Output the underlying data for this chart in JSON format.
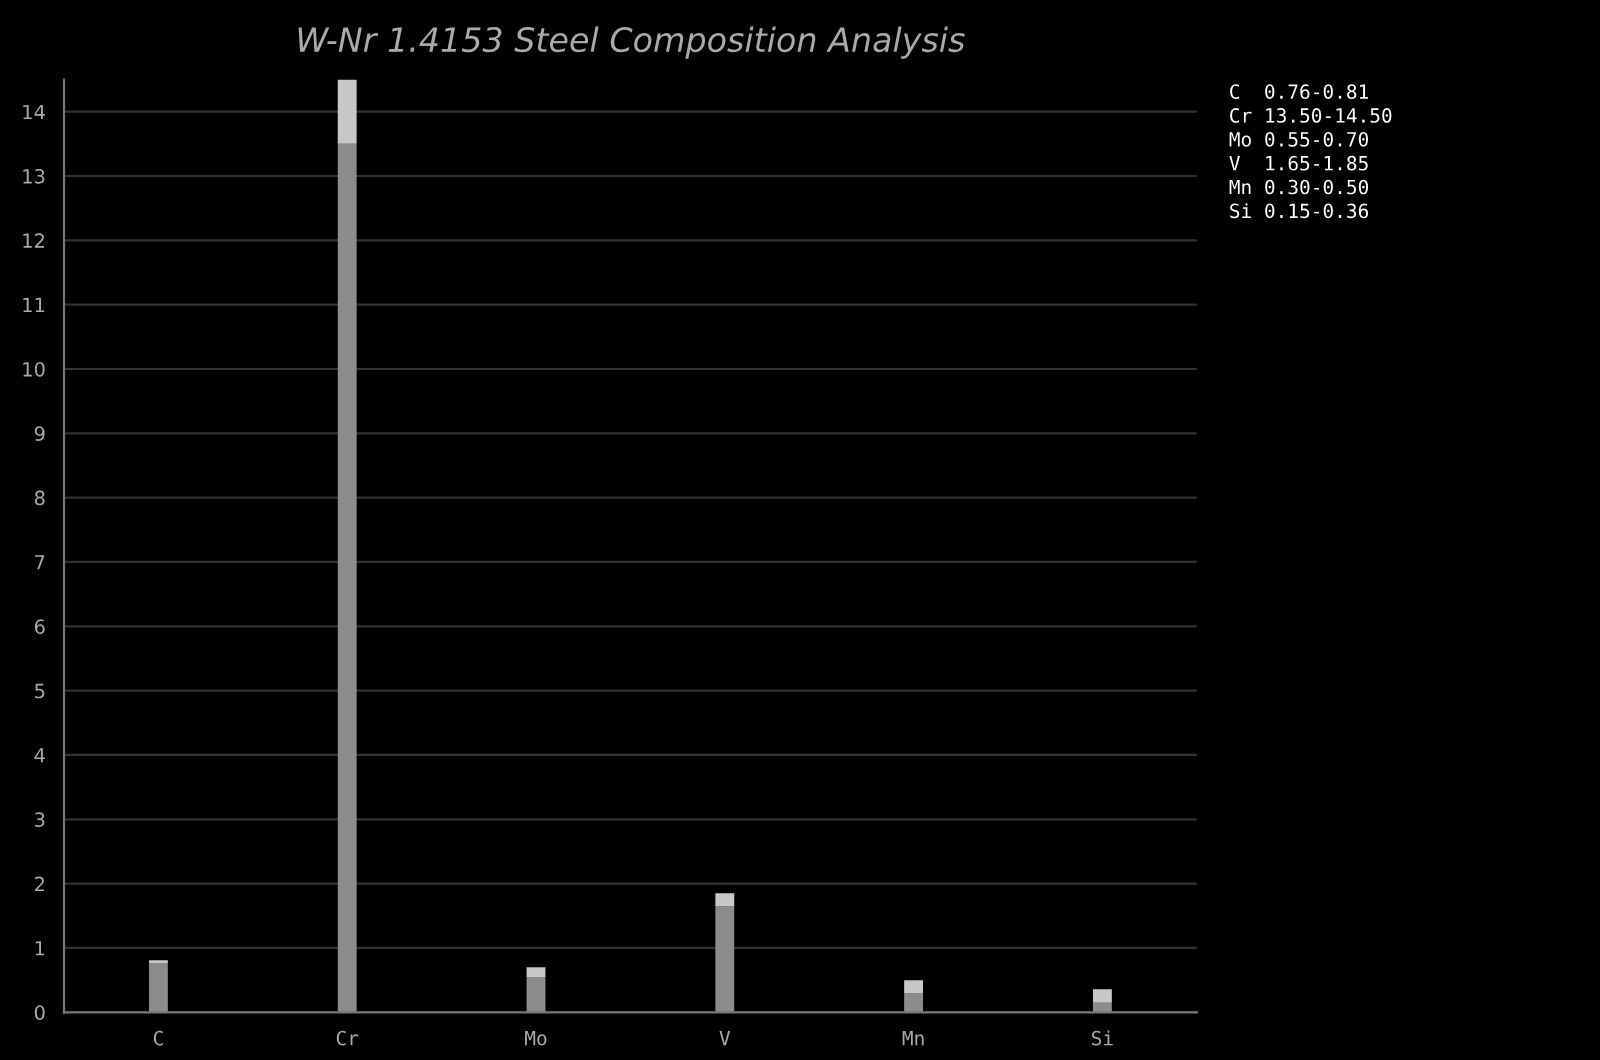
{
  "chart_data": {
    "type": "bar",
    "title": "W-Nr 1.4153 Steel Composition Analysis",
    "categories": [
      "C",
      "Cr",
      "Mo",
      "V",
      "Mn",
      "Si"
    ],
    "stacked": true,
    "series": [
      {
        "color": "#8c8c8c",
        "values": [
          0.76,
          13.5,
          0.55,
          1.65,
          0.3,
          0.15
        ]
      },
      {
        "color": "#c8c8c8",
        "values": [
          0.05,
          1.0,
          0.15,
          0.2,
          0.2,
          0.21
        ]
      }
    ],
    "ylim": [
      0,
      14.5
    ],
    "yticks": [
      0,
      1,
      2,
      3,
      4,
      5,
      6,
      7,
      8,
      9,
      10,
      11,
      12,
      13,
      14
    ],
    "grid": "y",
    "annotations": [
      "C  0.76-0.81",
      "Cr 13.50-14.50",
      "Mo 0.55-0.70",
      "V  1.65-1.85",
      "Mn 0.30-0.50",
      "Si 0.15-0.36"
    ]
  }
}
